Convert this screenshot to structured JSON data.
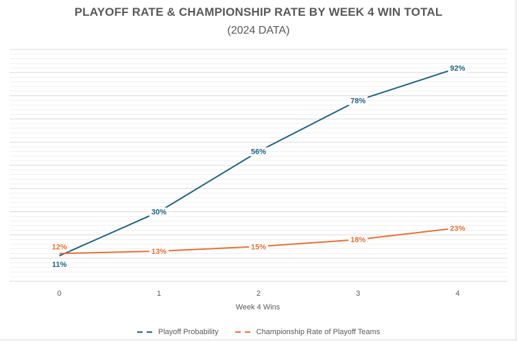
{
  "chart_data": {
    "type": "line",
    "title": "PLAYOFF RATE & CHAMPIONSHIP RATE BY WEEK 4 WIN TOTAL",
    "subtitle": "(2024 DATA)",
    "xlabel": "Week 4 Wins",
    "ylabel": "",
    "categories": [
      "0",
      "1",
      "2",
      "3",
      "4"
    ],
    "ylim": [
      0,
      100
    ],
    "y_axis_labels_shown": false,
    "grid": {
      "major_step": 10,
      "minor_step": 2
    },
    "legend_position": "bottom",
    "series": [
      {
        "name": "Playoff Probability",
        "values": [
          11,
          30,
          56,
          78,
          92
        ],
        "labels": [
          "11%",
          "30%",
          "56%",
          "78%",
          "92%"
        ],
        "color": "#1f6382"
      },
      {
        "name": "Championship Rate of Playoff Teams",
        "values": [
          12,
          13,
          15,
          18,
          23
        ],
        "labels": [
          "12%",
          "13%",
          "15%",
          "18%",
          "23%"
        ],
        "color": "#e86f35"
      }
    ]
  }
}
